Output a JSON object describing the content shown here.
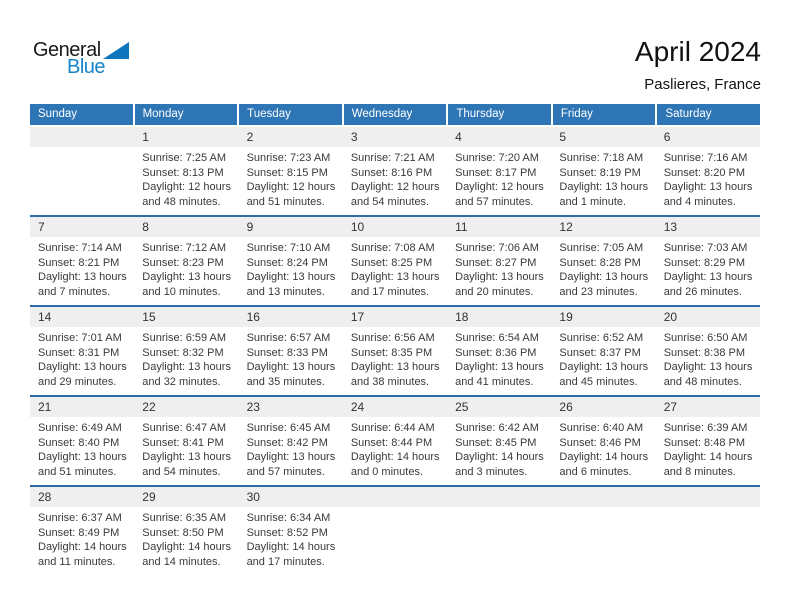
{
  "logo": {
    "general": "General",
    "blue": "Blue"
  },
  "header": {
    "title": "April 2024",
    "subtitle": "Paslieres, France"
  },
  "colors": {
    "header_blue": "#2e75b5",
    "divider_blue": "#2b6ca9",
    "stripe_gray": "#efefef",
    "logo_blue": "#1485c8",
    "logo_triangle_blue": "#0d76bc"
  },
  "calendar": {
    "day_headers": [
      "Sunday",
      "Monday",
      "Tuesday",
      "Wednesday",
      "Thursday",
      "Friday",
      "Saturday"
    ],
    "weeks": [
      [
        null,
        {
          "day": "1",
          "lines": [
            "Sunrise: 7:25 AM",
            "Sunset: 8:13 PM",
            "Daylight: 12 hours",
            "and 48 minutes."
          ]
        },
        {
          "day": "2",
          "lines": [
            "Sunrise: 7:23 AM",
            "Sunset: 8:15 PM",
            "Daylight: 12 hours",
            "and 51 minutes."
          ]
        },
        {
          "day": "3",
          "lines": [
            "Sunrise: 7:21 AM",
            "Sunset: 8:16 PM",
            "Daylight: 12 hours",
            "and 54 minutes."
          ]
        },
        {
          "day": "4",
          "lines": [
            "Sunrise: 7:20 AM",
            "Sunset: 8:17 PM",
            "Daylight: 12 hours",
            "and 57 minutes."
          ]
        },
        {
          "day": "5",
          "lines": [
            "Sunrise: 7:18 AM",
            "Sunset: 8:19 PM",
            "Daylight: 13 hours",
            "and 1 minute."
          ]
        },
        {
          "day": "6",
          "lines": [
            "Sunrise: 7:16 AM",
            "Sunset: 8:20 PM",
            "Daylight: 13 hours",
            "and 4 minutes."
          ]
        }
      ],
      [
        {
          "day": "7",
          "lines": [
            "Sunrise: 7:14 AM",
            "Sunset: 8:21 PM",
            "Daylight: 13 hours",
            "and 7 minutes."
          ]
        },
        {
          "day": "8",
          "lines": [
            "Sunrise: 7:12 AM",
            "Sunset: 8:23 PM",
            "Daylight: 13 hours",
            "and 10 minutes."
          ]
        },
        {
          "day": "9",
          "lines": [
            "Sunrise: 7:10 AM",
            "Sunset: 8:24 PM",
            "Daylight: 13 hours",
            "and 13 minutes."
          ]
        },
        {
          "day": "10",
          "lines": [
            "Sunrise: 7:08 AM",
            "Sunset: 8:25 PM",
            "Daylight: 13 hours",
            "and 17 minutes."
          ]
        },
        {
          "day": "11",
          "lines": [
            "Sunrise: 7:06 AM",
            "Sunset: 8:27 PM",
            "Daylight: 13 hours",
            "and 20 minutes."
          ]
        },
        {
          "day": "12",
          "lines": [
            "Sunrise: 7:05 AM",
            "Sunset: 8:28 PM",
            "Daylight: 13 hours",
            "and 23 minutes."
          ]
        },
        {
          "day": "13",
          "lines": [
            "Sunrise: 7:03 AM",
            "Sunset: 8:29 PM",
            "Daylight: 13 hours",
            "and 26 minutes."
          ]
        }
      ],
      [
        {
          "day": "14",
          "lines": [
            "Sunrise: 7:01 AM",
            "Sunset: 8:31 PM",
            "Daylight: 13 hours",
            "and 29 minutes."
          ]
        },
        {
          "day": "15",
          "lines": [
            "Sunrise: 6:59 AM",
            "Sunset: 8:32 PM",
            "Daylight: 13 hours",
            "and 32 minutes."
          ]
        },
        {
          "day": "16",
          "lines": [
            "Sunrise: 6:57 AM",
            "Sunset: 8:33 PM",
            "Daylight: 13 hours",
            "and 35 minutes."
          ]
        },
        {
          "day": "17",
          "lines": [
            "Sunrise: 6:56 AM",
            "Sunset: 8:35 PM",
            "Daylight: 13 hours",
            "and 38 minutes."
          ]
        },
        {
          "day": "18",
          "lines": [
            "Sunrise: 6:54 AM",
            "Sunset: 8:36 PM",
            "Daylight: 13 hours",
            "and 41 minutes."
          ]
        },
        {
          "day": "19",
          "lines": [
            "Sunrise: 6:52 AM",
            "Sunset: 8:37 PM",
            "Daylight: 13 hours",
            "and 45 minutes."
          ]
        },
        {
          "day": "20",
          "lines": [
            "Sunrise: 6:50 AM",
            "Sunset: 8:38 PM",
            "Daylight: 13 hours",
            "and 48 minutes."
          ]
        }
      ],
      [
        {
          "day": "21",
          "lines": [
            "Sunrise: 6:49 AM",
            "Sunset: 8:40 PM",
            "Daylight: 13 hours",
            "and 51 minutes."
          ]
        },
        {
          "day": "22",
          "lines": [
            "Sunrise: 6:47 AM",
            "Sunset: 8:41 PM",
            "Daylight: 13 hours",
            "and 54 minutes."
          ]
        },
        {
          "day": "23",
          "lines": [
            "Sunrise: 6:45 AM",
            "Sunset: 8:42 PM",
            "Daylight: 13 hours",
            "and 57 minutes."
          ]
        },
        {
          "day": "24",
          "lines": [
            "Sunrise: 6:44 AM",
            "Sunset: 8:44 PM",
            "Daylight: 14 hours",
            "and 0 minutes."
          ]
        },
        {
          "day": "25",
          "lines": [
            "Sunrise: 6:42 AM",
            "Sunset: 8:45 PM",
            "Daylight: 14 hours",
            "and 3 minutes."
          ]
        },
        {
          "day": "26",
          "lines": [
            "Sunrise: 6:40 AM",
            "Sunset: 8:46 PM",
            "Daylight: 14 hours",
            "and 6 minutes."
          ]
        },
        {
          "day": "27",
          "lines": [
            "Sunrise: 6:39 AM",
            "Sunset: 8:48 PM",
            "Daylight: 14 hours",
            "and 8 minutes."
          ]
        }
      ],
      [
        {
          "day": "28",
          "lines": [
            "Sunrise: 6:37 AM",
            "Sunset: 8:49 PM",
            "Daylight: 14 hours",
            "and 11 minutes."
          ]
        },
        {
          "day": "29",
          "lines": [
            "Sunrise: 6:35 AM",
            "Sunset: 8:50 PM",
            "Daylight: 14 hours",
            "and 14 minutes."
          ]
        },
        {
          "day": "30",
          "lines": [
            "Sunrise: 6:34 AM",
            "Sunset: 8:52 PM",
            "Daylight: 14 hours",
            "and 17 minutes."
          ]
        },
        null,
        null,
        null,
        null
      ]
    ]
  }
}
